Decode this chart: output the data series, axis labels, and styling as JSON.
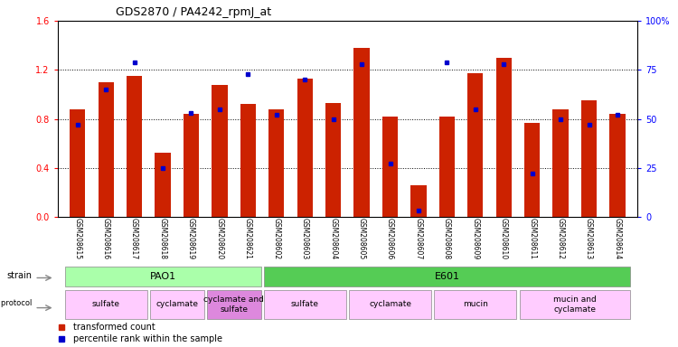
{
  "title": "GDS2870 / PA4242_rpmJ_at",
  "samples": [
    "GSM208615",
    "GSM208616",
    "GSM208617",
    "GSM208618",
    "GSM208619",
    "GSM208620",
    "GSM208621",
    "GSM208602",
    "GSM208603",
    "GSM208604",
    "GSM208605",
    "GSM208606",
    "GSM208607",
    "GSM208608",
    "GSM208609",
    "GSM208610",
    "GSM208611",
    "GSM208612",
    "GSM208613",
    "GSM208614"
  ],
  "transformed_count": [
    0.88,
    1.1,
    1.15,
    0.52,
    0.84,
    1.08,
    0.92,
    0.88,
    1.13,
    0.93,
    1.38,
    0.82,
    0.26,
    0.82,
    1.17,
    1.3,
    0.77,
    0.88,
    0.95,
    0.84
  ],
  "percentile_rank": [
    47,
    65,
    79,
    25,
    53,
    55,
    73,
    52,
    70,
    50,
    78,
    27,
    3,
    79,
    55,
    78,
    22,
    50,
    47,
    52
  ],
  "ylim_left": [
    0,
    1.6
  ],
  "ylim_right": [
    0,
    100
  ],
  "yticks_left": [
    0,
    0.4,
    0.8,
    1.2,
    1.6
  ],
  "yticks_right": [
    0,
    25,
    50,
    75,
    100
  ],
  "bar_color": "#cc2200",
  "dot_color": "#0000cc",
  "strain_pao1": {
    "text": "PAO1",
    "start": 0,
    "end": 6,
    "color": "#aaffaa"
  },
  "strain_e601": {
    "text": "E601",
    "start": 7,
    "end": 19,
    "color": "#55cc55"
  },
  "growth_labels": [
    {
      "text": "sulfate",
      "start": 0,
      "end": 2,
      "color": "#ffccff"
    },
    {
      "text": "cyclamate",
      "start": 3,
      "end": 4,
      "color": "#ffccff"
    },
    {
      "text": "cyclamate and\nsulfate",
      "start": 5,
      "end": 6,
      "color": "#dd88dd"
    },
    {
      "text": "sulfate",
      "start": 7,
      "end": 9,
      "color": "#ffccff"
    },
    {
      "text": "cyclamate",
      "start": 10,
      "end": 12,
      "color": "#ffccff"
    },
    {
      "text": "mucin",
      "start": 13,
      "end": 15,
      "color": "#ffccff"
    },
    {
      "text": "mucin and\ncyclamate",
      "start": 16,
      "end": 19,
      "color": "#ffccff"
    }
  ],
  "legend_items": [
    {
      "label": "transformed count",
      "color": "#cc2200"
    },
    {
      "label": "percentile rank within the sample",
      "color": "#0000cc"
    }
  ],
  "bg_color": "#ffffff",
  "xlabels_bg": "#dddddd",
  "bar_width": 0.55
}
